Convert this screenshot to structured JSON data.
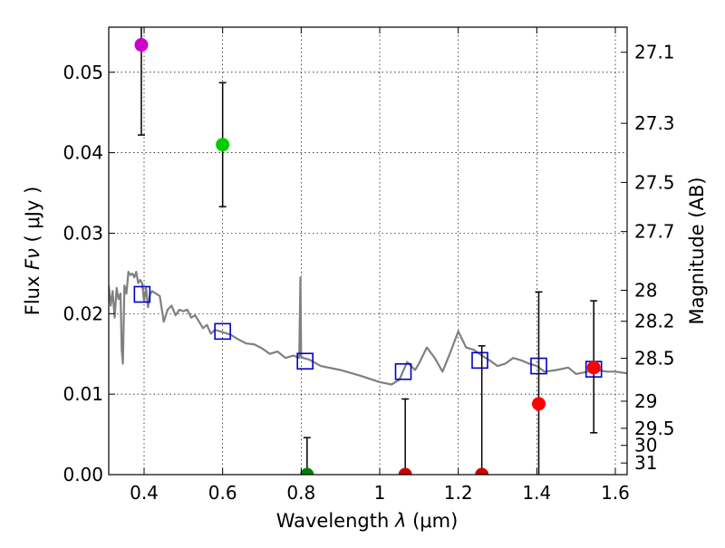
{
  "chart_data": {
    "type": "scatter",
    "xlabel": "Wavelength  λ (μm)",
    "xlabel_parts": {
      "prefix": "Wavelength  ",
      "symbol": "λ",
      "unit": "(μm)"
    },
    "ylabel": "Flux  Fν  ( μJy )",
    "ylabel_parts": {
      "prefix": "Flux  ",
      "symbol": "Fν",
      "unit": "( μJy )"
    },
    "ylabel_right": "Magnitude (AB)",
    "xlim": [
      0.31,
      1.63
    ],
    "ylim": [
      0.0,
      0.0556
    ],
    "grid": true,
    "grid_style": "dotted",
    "x_ticks": [
      {
        "value": 0.4,
        "label": "0.4"
      },
      {
        "value": 0.6,
        "label": "0.6"
      },
      {
        "value": 0.8,
        "label": "0.8"
      },
      {
        "value": 1.0,
        "label": "1"
      },
      {
        "value": 1.2,
        "label": "1.2"
      },
      {
        "value": 1.4,
        "label": "1.4"
      },
      {
        "value": 1.6,
        "label": "1.6"
      }
    ],
    "y_ticks": [
      {
        "value": 0.0,
        "label": "0.00"
      },
      {
        "value": 0.01,
        "label": "0.01"
      },
      {
        "value": 0.02,
        "label": "0.02"
      },
      {
        "value": 0.03,
        "label": "0.03"
      },
      {
        "value": 0.04,
        "label": "0.04"
      },
      {
        "value": 0.05,
        "label": "0.05"
      }
    ],
    "right_ticks": [
      {
        "mag": 27.1,
        "label": "27.1"
      },
      {
        "mag": 27.3,
        "label": "27.3"
      },
      {
        "mag": 27.5,
        "label": "27.5"
      },
      {
        "mag": 27.7,
        "label": "27.7"
      },
      {
        "mag": 28.0,
        "label": "28"
      },
      {
        "mag": 28.2,
        "label": "28.2"
      },
      {
        "mag": 28.5,
        "label": "28.5"
      },
      {
        "mag": 29.0,
        "label": "29"
      },
      {
        "mag": 29.5,
        "label": "29.5"
      },
      {
        "mag": 30.0,
        "label": "30"
      },
      {
        "mag": 31.0,
        "label": "31"
      }
    ],
    "series": [
      {
        "name": "model-sed",
        "kind": "line",
        "color": "#808080",
        "x": [
          0.31,
          0.315,
          0.32,
          0.325,
          0.33,
          0.335,
          0.34,
          0.343,
          0.346,
          0.35,
          0.355,
          0.36,
          0.365,
          0.37,
          0.375,
          0.38,
          0.385,
          0.39,
          0.395,
          0.4,
          0.405,
          0.41,
          0.415,
          0.42,
          0.43,
          0.44,
          0.45,
          0.46,
          0.47,
          0.48,
          0.49,
          0.5,
          0.51,
          0.52,
          0.53,
          0.54,
          0.55,
          0.56,
          0.57,
          0.58,
          0.6,
          0.62,
          0.64,
          0.66,
          0.68,
          0.7,
          0.72,
          0.74,
          0.76,
          0.78,
          0.795,
          0.798,
          0.8,
          0.802,
          0.805,
          0.82,
          0.85,
          0.9,
          0.95,
          1.0,
          1.03,
          1.05,
          1.07,
          1.09,
          1.1,
          1.12,
          1.14,
          1.16,
          1.18,
          1.2,
          1.22,
          1.24,
          1.26,
          1.28,
          1.3,
          1.32,
          1.34,
          1.36,
          1.38,
          1.4,
          1.42,
          1.45,
          1.48,
          1.5,
          1.52,
          1.55,
          1.58,
          1.6,
          1.63
        ],
        "y": [
          0.0235,
          0.021,
          0.0228,
          0.0195,
          0.0232,
          0.0218,
          0.0225,
          0.0155,
          0.0138,
          0.0235,
          0.0225,
          0.0252,
          0.0248,
          0.025,
          0.0245,
          0.0252,
          0.0238,
          0.0242,
          0.0238,
          0.0215,
          0.0232,
          0.0208,
          0.0224,
          0.0228,
          0.0225,
          0.0222,
          0.019,
          0.0205,
          0.021,
          0.0198,
          0.0205,
          0.0203,
          0.0205,
          0.0195,
          0.0198,
          0.019,
          0.0182,
          0.0186,
          0.0175,
          0.018,
          0.0177,
          0.0174,
          0.0168,
          0.0163,
          0.0162,
          0.0157,
          0.015,
          0.0153,
          0.0145,
          0.0148,
          0.0145,
          0.0245,
          0.0147,
          0.0146,
          0.0145,
          0.0143,
          0.0135,
          0.013,
          0.0123,
          0.0115,
          0.0112,
          0.0118,
          0.014,
          0.013,
          0.0138,
          0.0158,
          0.0145,
          0.0128,
          0.0152,
          0.0178,
          0.0158,
          0.0155,
          0.0148,
          0.0142,
          0.0135,
          0.0138,
          0.0145,
          0.0142,
          0.0138,
          0.0135,
          0.0128,
          0.013,
          0.0133,
          0.0125,
          0.0127,
          0.013,
          0.0128,
          0.0128,
          0.0126
        ]
      },
      {
        "name": "model-photometry",
        "kind": "open-square",
        "color": "#0000cc",
        "x": [
          0.395,
          0.6,
          0.81,
          1.06,
          1.255,
          1.405,
          1.545
        ],
        "y": [
          0.0224,
          0.0178,
          0.0141,
          0.0128,
          0.0142,
          0.0135,
          0.0131
        ]
      },
      {
        "name": "observed",
        "kind": "filled-circle-errorbar",
        "points": [
          {
            "x": 0.393,
            "y": 0.0534,
            "err_low": 0.0112,
            "err_high": 0.003,
            "color": "#cc00cc"
          },
          {
            "x": 0.6,
            "y": 0.041,
            "err_low": 0.0077,
            "err_high": 0.0077,
            "color": "#00cc00"
          },
          {
            "x": 0.815,
            "y": 0.0,
            "err_low": 0.0,
            "err_high": 0.0046,
            "color": "#008000"
          },
          {
            "x": 1.065,
            "y": 0.0,
            "err_low": 0.0,
            "err_high": 0.0094,
            "color": "#cc0000"
          },
          {
            "x": 1.26,
            "y": 0.0,
            "err_low": 0.0,
            "err_high": 0.016,
            "color": "#cc0000"
          },
          {
            "x": 1.405,
            "y": 0.0088,
            "err_low": 0.0088,
            "err_high": 0.0139,
            "color": "#ff0000"
          },
          {
            "x": 1.545,
            "y": 0.0133,
            "err_low": 0.0081,
            "err_high": 0.0083,
            "color": "#ff0000"
          }
        ]
      }
    ]
  }
}
